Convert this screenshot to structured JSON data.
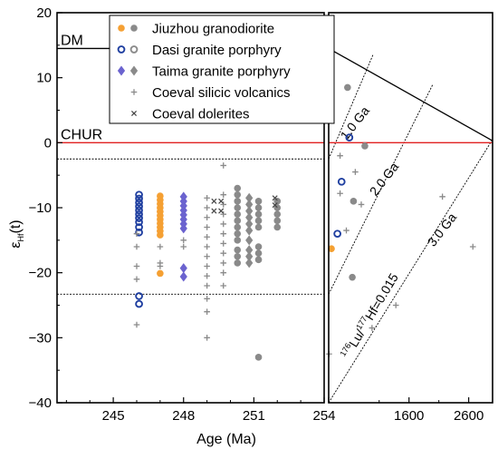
{
  "chart_data": [
    {
      "type": "scatter",
      "xlabel": "Age (Ma)",
      "ylabel_main": "ε",
      "ylabel_sub": "Hf",
      "ylabel_suffix": "(t)",
      "xlim": [
        242.6,
        254
      ],
      "ylim": [
        -40,
        20
      ],
      "x_ticks": [
        245,
        248,
        251,
        254
      ],
      "y_ticks": [
        20,
        10,
        0,
        -10,
        -20,
        -30,
        -40
      ],
      "y_tick_labels": [
        "20",
        "10",
        "0",
        "−10",
        "−20",
        "−30",
        "−40"
      ],
      "reference_lines": [
        {
          "name": "DM",
          "y": 14.5,
          "color": "#000000"
        },
        {
          "name": "CHUR",
          "y": 0,
          "color": "#e02020"
        }
      ],
      "dotted_lines": [
        -2.5,
        -23.3
      ],
      "series": [
        {
          "name": "Jiuzhou granodiorite",
          "color": "#f5a033",
          "marker": "circle",
          "values": [
            [
              247.0,
              -8.2
            ],
            [
              247.0,
              -8.8
            ],
            [
              247.0,
              -9.4
            ],
            [
              247.0,
              -10.0
            ],
            [
              247.0,
              -10.6
            ],
            [
              247.0,
              -11.2
            ],
            [
              247.0,
              -11.8
            ],
            [
              247.0,
              -12.4
            ],
            [
              247.0,
              -13.0
            ],
            [
              247.0,
              -13.6
            ],
            [
              247.0,
              -14.2
            ],
            [
              247.0,
              -20.1
            ]
          ]
        },
        {
          "name": "Jiuzhou granodiorite (grey)",
          "color": "#8a8a8a",
          "marker": "circle",
          "values": [
            [
              250.3,
              -7.0
            ],
            [
              250.3,
              -8.0
            ],
            [
              250.3,
              -9.0
            ],
            [
              250.3,
              -10.0
            ],
            [
              250.3,
              -11.0
            ],
            [
              250.3,
              -12.0
            ],
            [
              250.3,
              -13.0
            ],
            [
              250.3,
              -14.0
            ],
            [
              250.3,
              -15.0
            ],
            [
              250.3,
              -16.5
            ],
            [
              250.3,
              -17.5
            ],
            [
              250.3,
              -18.5
            ],
            [
              251.2,
              -9.0
            ],
            [
              251.2,
              -10.0
            ],
            [
              251.2,
              -11.0
            ],
            [
              251.2,
              -12.0
            ],
            [
              251.2,
              -13.0
            ],
            [
              251.2,
              -16.0
            ],
            [
              251.2,
              -17.0
            ],
            [
              251.2,
              -18.0
            ],
            [
              251.2,
              -33.0
            ],
            [
              252.0,
              -9.0
            ],
            [
              252.0,
              -10.0
            ],
            [
              252.0,
              -11.0
            ],
            [
              252.0,
              -12.0
            ],
            [
              252.0,
              -13.0
            ]
          ]
        },
        {
          "name": "Dasi granite porphyry",
          "color": "#1f3fa0",
          "marker": "open-circle",
          "values": [
            [
              246.1,
              -8.0
            ],
            [
              246.1,
              -8.6
            ],
            [
              246.1,
              -9.2
            ],
            [
              246.1,
              -9.8
            ],
            [
              246.1,
              -10.4
            ],
            [
              246.1,
              -11.0
            ],
            [
              246.1,
              -11.6
            ],
            [
              246.1,
              -12.2
            ],
            [
              246.1,
              -13.0
            ],
            [
              246.1,
              -13.8
            ],
            [
              246.1,
              -23.6
            ],
            [
              246.1,
              -24.8
            ]
          ]
        },
        {
          "name": "Taima granite porphyry",
          "color": "#6b63cf",
          "marker": "diamond",
          "values": [
            [
              248.0,
              -8.3
            ],
            [
              248.0,
              -9.0
            ],
            [
              248.0,
              -9.7
            ],
            [
              248.0,
              -10.4
            ],
            [
              248.0,
              -11.1
            ],
            [
              248.0,
              -11.8
            ],
            [
              248.0,
              -12.5
            ],
            [
              248.0,
              -13.2
            ],
            [
              248.0,
              -19.3
            ],
            [
              248.0,
              -20.6
            ]
          ]
        },
        {
          "name": "Taima granite porphyry (grey)",
          "color": "#8a8a8a",
          "marker": "diamond",
          "values": [
            [
              250.8,
              -8.5
            ],
            [
              250.8,
              -9.5
            ],
            [
              250.8,
              -10.5
            ],
            [
              250.8,
              -11.5
            ],
            [
              250.8,
              -12.5
            ],
            [
              250.8,
              -13.5
            ],
            [
              250.8,
              -15.0
            ],
            [
              250.8,
              -16.5
            ],
            [
              250.8,
              -17.5
            ],
            [
              250.8,
              -18.5
            ]
          ]
        },
        {
          "name": "Coeval silicic volcanics",
          "color": "#8a8a8a",
          "marker": "plus",
          "values": [
            [
              246.0,
              -14.0
            ],
            [
              246.0,
              -16.0
            ],
            [
              246.0,
              -19.0
            ],
            [
              246.0,
              -21.0
            ],
            [
              246.0,
              -28.0
            ],
            [
              247.0,
              -16.0
            ],
            [
              247.0,
              -18.5
            ],
            [
              247.0,
              -19.0
            ],
            [
              248.0,
              -15.0
            ],
            [
              248.0,
              -16.0
            ],
            [
              249.0,
              -8.5
            ],
            [
              249.0,
              -10.0
            ],
            [
              249.0,
              -11.5
            ],
            [
              249.0,
              -13.0
            ],
            [
              249.0,
              -14.5
            ],
            [
              249.0,
              -16.0
            ],
            [
              249.0,
              -17.5
            ],
            [
              249.0,
              -19.0
            ],
            [
              249.0,
              -20.5
            ],
            [
              249.0,
              -22.0
            ],
            [
              249.0,
              -24.0
            ],
            [
              249.0,
              -26.0
            ],
            [
              249.0,
              -30.0
            ],
            [
              249.7,
              -3.5
            ],
            [
              249.7,
              -8.0
            ],
            [
              249.7,
              -9.5
            ],
            [
              249.7,
              -11.0
            ],
            [
              249.7,
              -12.5
            ],
            [
              249.7,
              -14.0
            ],
            [
              249.7,
              -15.5
            ],
            [
              249.7,
              -17.0
            ],
            [
              249.7,
              -18.5
            ],
            [
              249.7,
              -20.0
            ],
            [
              249.7,
              -22.0
            ]
          ]
        },
        {
          "name": "Coeval dolerites",
          "color": "#444444",
          "marker": "cross",
          "values": [
            [
              249.3,
              -9.0
            ],
            [
              249.3,
              -10.5
            ],
            [
              249.6,
              -9.0
            ],
            [
              249.6,
              -10.5
            ],
            [
              251.9,
              -8.5
            ],
            [
              251.9,
              -9.6
            ]
          ]
        }
      ],
      "legend": {
        "placement": "top",
        "items": [
          {
            "label": "Jiuzhou granodiorite",
            "markers": [
              "orange-circle",
              "grey-circle"
            ]
          },
          {
            "label": "Dasi granite porphyry",
            "markers": [
              "open-blue-circle",
              "grey-open-circle"
            ]
          },
          {
            "label": "Taima granite porphyry",
            "markers": [
              "purple-diamond",
              "grey-diamond"
            ]
          },
          {
            "label": "Coeval silicic volcanics",
            "markers": [
              "grey-plus"
            ]
          },
          {
            "label": "Coeval dolerites",
            "markers": [
              "cross"
            ]
          }
        ]
      }
    },
    {
      "type": "scatter",
      "xlim": [
        254,
        3000
      ],
      "ylim": [
        -40,
        20
      ],
      "x_ticks": [
        254,
        1600,
        2600
      ],
      "reference_lines": [
        {
          "name": "DM",
          "y_at_xmin": 14.5,
          "y_at_xmax": 0.3,
          "color": "#000000"
        },
        {
          "name": "CHUR",
          "y": 0,
          "color": "#e02020"
        }
      ],
      "evolution_lines": [
        {
          "label": "1.0 Ga",
          "from": [
            254,
            -2.5
          ],
          "to": [
            1000,
            13.6
          ]
        },
        {
          "label": "2.0 Ga",
          "from": [
            254,
            -23.3
          ],
          "to": [
            2000,
            9.0
          ]
        },
        {
          "label": "3.0 Ga",
          "from": [
            254,
            -40
          ],
          "to": [
            3000,
            0.5
          ]
        }
      ],
      "annotations": [
        {
          "text": "1.0 Ga",
          "x": 750,
          "y": 2.6,
          "rotate": -52
        },
        {
          "text": "2.0 Ga",
          "x": 1240,
          "y": -6.0,
          "rotate": -52
        },
        {
          "text": "3.0 Ga",
          "x": 2210,
          "y": -13.8,
          "rotate": -52
        },
        {
          "text_parts": [
            "176",
            "Lu/",
            "177",
            "Hf=0.015"
          ],
          "x": 1010,
          "y": -27.0,
          "rotate": -59
        }
      ],
      "series": [
        {
          "name": "Jiuzhou granodiorite",
          "color": "#f5a033",
          "marker": "circle",
          "values": [
            [
              300,
              -16.3
            ]
          ]
        },
        {
          "name": "Jiuzhou granodiorite (grey)",
          "color": "#8a8a8a",
          "marker": "circle",
          "values": [
            [
              570,
              8.5
            ],
            [
              860,
              -0.5
            ],
            [
              670,
              -9.0
            ],
            [
              650,
              -20.7
            ]
          ]
        },
        {
          "name": "Dasi granite porphyry",
          "color": "#1f3fa0",
          "marker": "open-circle",
          "values": [
            [
              600,
              0.8
            ],
            [
              470,
              -6.0
            ],
            [
              400,
              -14.0
            ]
          ]
        },
        {
          "name": "Coeval silicic volcanics",
          "color": "#8a8a8a",
          "marker": "plus",
          "values": [
            [
              445,
              -2.0
            ],
            [
              700,
              -4.5
            ],
            [
              445,
              -7.8
            ],
            [
              800,
              -9.5
            ],
            [
              550,
              -13.5
            ],
            [
              2160,
              -8.3
            ],
            [
              1380,
              -25.0
            ],
            [
              2670,
              -16.0
            ],
            [
              980,
              -28.5
            ],
            [
              260,
              -32.5
            ]
          ]
        }
      ]
    }
  ]
}
